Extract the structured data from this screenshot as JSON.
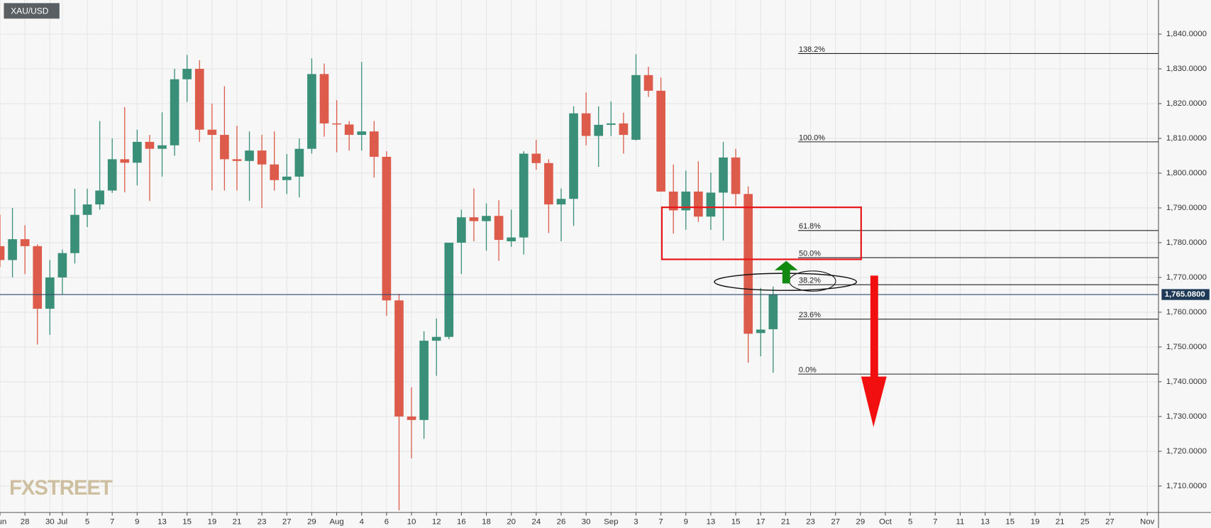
{
  "chart_data": {
    "type": "candlestick",
    "title": "XAU/USD",
    "watermark": "FXSTREET",
    "x": [
      0,
      1,
      2,
      3,
      4,
      5,
      6,
      7,
      8,
      9,
      10,
      11,
      12,
      13,
      14,
      15,
      16,
      17,
      18,
      19,
      20,
      21,
      22,
      23,
      24,
      25,
      26,
      27,
      28,
      29,
      30,
      31,
      32,
      33,
      34,
      35,
      36,
      37,
      38,
      39,
      40,
      41,
      42,
      43,
      44,
      45,
      46,
      47,
      48,
      49,
      50,
      51,
      52,
      53,
      54,
      55,
      56,
      57,
      58,
      59,
      60,
      61,
      62
    ],
    "open": [
      1779,
      1775,
      1781,
      1779,
      1761,
      1770,
      1777,
      1788,
      1791,
      1795,
      1804,
      1803,
      1809,
      1807,
      1808,
      1827,
      1830,
      1812.5,
      1811,
      1804,
      1803.5,
      1806.5,
      1802.5,
      1798,
      1799,
      1807,
      1828.5,
      1814.3,
      1814,
      1811,
      1812,
      1804.7,
      1763.4,
      1730,
      1729,
      1751.8,
      1752.9,
      1780,
      1787.3,
      1786.2,
      1787.7,
      1780.4,
      1781.5,
      1805.6,
      1802.9,
      1791,
      1792.6,
      1817.2,
      1810.7,
      1813.9,
      1814.3,
      1809.6,
      1828.2,
      1823.7,
      1794.7,
      1789.3,
      1794.7,
      1787.5,
      1794.4,
      1804.5,
      1794,
      1754,
      1755.1
    ],
    "high": [
      1788,
      1790,
      1785,
      1779.5,
      1775,
      1778,
      1795.5,
      1795.5,
      1815,
      1810,
      1819,
      1812.5,
      1811,
      1817.5,
      1830,
      1834,
      1832.5,
      1820,
      1825,
      1813.6,
      1812,
      1811,
      1812,
      1805.5,
      1810,
      1833,
      1831.5,
      1821,
      1815,
      1832,
      1815,
      1806.3,
      1765.3,
      1738.4,
      1754.5,
      1758.2,
      1780,
      1789.5,
      1795.6,
      1791.3,
      1792.2,
      1789.5,
      1806.3,
      1809.6,
      1804,
      1795.6,
      1819.2,
      1823.2,
      1819.2,
      1820.6,
      1817.4,
      1834.2,
      1830.6,
      1827.5,
      1802.5,
      1800.7,
      1803.4,
      1800.2,
      1809,
      1807,
      1796.2,
      1767,
      1767.4
    ],
    "low": [
      1773,
      1770,
      1771,
      1750.7,
      1753.5,
      1765,
      1774,
      1784.5,
      1789.5,
      1794.3,
      1794.5,
      1796.5,
      1792,
      1799,
      1805,
      1820.5,
      1809,
      1795,
      1795,
      1795,
      1792,
      1790,
      1795,
      1794,
      1793,
      1805.6,
      1810.5,
      1806,
      1806.5,
      1806.5,
      1798.7,
      1759,
      1703,
      1718,
      1723.6,
      1741.7,
      1752.2,
      1771,
      1780.4,
      1777.7,
      1774.8,
      1778.8,
      1776.6,
      1801,
      1782.8,
      1780.4,
      1784.8,
      1808,
      1801.8,
      1810.7,
      1805.6,
      1809.4,
      1821.9,
      1794.7,
      1782.6,
      1783.7,
      1786,
      1783.7,
      1780.6,
      1790.6,
      1745.5,
      1747.3,
      1742.6
    ],
    "close": [
      1775,
      1781,
      1779,
      1761,
      1770,
      1777,
      1788,
      1791,
      1795,
      1804,
      1803,
      1809,
      1807,
      1808,
      1827,
      1830,
      1812.5,
      1811,
      1804,
      1803.5,
      1806.5,
      1802.5,
      1798,
      1799,
      1807,
      1828.5,
      1814.3,
      1814,
      1811,
      1812,
      1804.7,
      1763.4,
      1730,
      1729,
      1751.8,
      1752.9,
      1780,
      1787.3,
      1786.2,
      1787.7,
      1780.8,
      1781.5,
      1805.6,
      1802.9,
      1791,
      1792.6,
      1817.2,
      1810.7,
      1813.9,
      1814.3,
      1811,
      1828.2,
      1823.7,
      1794.7,
      1789.3,
      1794.7,
      1787.5,
      1794.4,
      1804.5,
      1794,
      1753.8,
      1755,
      1765
    ],
    "up_color": "#3a8f78",
    "down_color": "#dc5b4b",
    "xlim": [
      0,
      92.9
    ],
    "ylim": [
      1702.4,
      1849.8
    ],
    "grid": true,
    "xticks": [
      {
        "value": 0,
        "label": "Jun"
      },
      {
        "value": 2,
        "label": "28"
      },
      {
        "value": 4,
        "label": "30"
      },
      {
        "value": 5,
        "label": "Jul"
      },
      {
        "value": 7,
        "label": "5"
      },
      {
        "value": 9,
        "label": "7"
      },
      {
        "value": 11,
        "label": "9"
      },
      {
        "value": 13,
        "label": "13"
      },
      {
        "value": 15,
        "label": "15"
      },
      {
        "value": 17,
        "label": "19"
      },
      {
        "value": 19,
        "label": "21"
      },
      {
        "value": 21,
        "label": "23"
      },
      {
        "value": 23,
        "label": "27"
      },
      {
        "value": 25,
        "label": "29"
      },
      {
        "value": 27,
        "label": "Aug"
      },
      {
        "value": 29,
        "label": "4"
      },
      {
        "value": 31,
        "label": "6"
      },
      {
        "value": 33,
        "label": "10"
      },
      {
        "value": 35,
        "label": "12"
      },
      {
        "value": 37,
        "label": "16"
      },
      {
        "value": 39,
        "label": "18"
      },
      {
        "value": 41,
        "label": "20"
      },
      {
        "value": 43,
        "label": "24"
      },
      {
        "value": 45,
        "label": "26"
      },
      {
        "value": 47,
        "label": "30"
      },
      {
        "value": 49,
        "label": "Sep"
      },
      {
        "value": 51,
        "label": "3"
      },
      {
        "value": 53,
        "label": "7"
      },
      {
        "value": 55,
        "label": "9"
      },
      {
        "value": 57,
        "label": "13"
      },
      {
        "value": 59,
        "label": "15"
      },
      {
        "value": 61,
        "label": "17"
      },
      {
        "value": 63,
        "label": "21"
      },
      {
        "value": 65,
        "label": "23"
      },
      {
        "value": 67,
        "label": "27"
      },
      {
        "value": 69,
        "label": "29"
      },
      {
        "value": 71,
        "label": "Oct"
      },
      {
        "value": 73,
        "label": "5"
      },
      {
        "value": 75,
        "label": "7"
      },
      {
        "value": 77,
        "label": "11"
      },
      {
        "value": 79,
        "label": "13"
      },
      {
        "value": 81,
        "label": "15"
      },
      {
        "value": 83,
        "label": "19"
      },
      {
        "value": 85,
        "label": "21"
      },
      {
        "value": 87,
        "label": "25"
      },
      {
        "value": 89,
        "label": "27"
      },
      {
        "value": 92,
        "label": "Nov"
      }
    ],
    "yticks": [
      {
        "value": 1710,
        "label": "1,710.0000"
      },
      {
        "value": 1720,
        "label": "1,720.0000"
      },
      {
        "value": 1730,
        "label": "1,730.0000"
      },
      {
        "value": 1740,
        "label": "1,740.0000"
      },
      {
        "value": 1750,
        "label": "1,750.0000"
      },
      {
        "value": 1760,
        "label": "1,760.0000"
      },
      {
        "value": 1770,
        "label": "1,770.0000"
      },
      {
        "value": 1780,
        "label": "1,780.0000"
      },
      {
        "value": 1790,
        "label": "1,790.0000"
      },
      {
        "value": 1800,
        "label": "1,800.0000"
      },
      {
        "value": 1810,
        "label": "1,810.0000"
      },
      {
        "value": 1820,
        "label": "1,820.0000"
      },
      {
        "value": 1830,
        "label": "1,830.0000"
      },
      {
        "value": 1840,
        "label": "1,840.0000"
      }
    ],
    "last_price": {
      "value": 1765.08,
      "label": "1,765.0800"
    },
    "fib_start": 64,
    "fib_levels": [
      {
        "label": "138.2%",
        "value": 1834.4
      },
      {
        "label": "100.0%",
        "value": 1809
      },
      {
        "label": "61.8%",
        "value": 1783.5
      },
      {
        "label": "50.0%",
        "value": 1775.7
      },
      {
        "label": "38.2%",
        "value": 1767.9
      },
      {
        "label": "23.6%",
        "value": 1758
      },
      {
        "label": "0.0%",
        "value": 1742.2
      }
    ]
  }
}
